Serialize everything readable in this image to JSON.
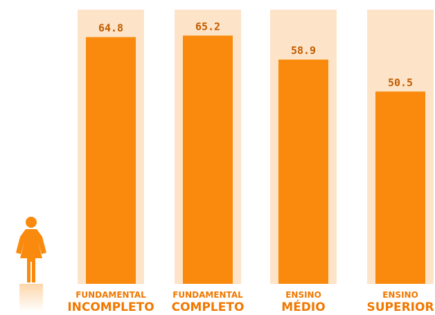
{
  "chart_data": {
    "type": "bar",
    "categories": [
      {
        "line1": "FUNDAMENTAL",
        "line2": "INCOMPLETO"
      },
      {
        "line1": "FUNDAMENTAL",
        "line2": "COMPLETO"
      },
      {
        "line1": "ENSINO",
        "line2": "MÉDIO"
      },
      {
        "line1": "ENSINO",
        "line2": "SUPERIOR"
      }
    ],
    "values": [
      64.8,
      65.2,
      58.9,
      50.5
    ],
    "value_labels": [
      "64.8",
      "65.2",
      "58.9",
      "50.5"
    ],
    "ylim": [
      0,
      72
    ],
    "grid": false,
    "legend": "none"
  },
  "colors": {
    "bar": "#f98a0d",
    "track": "#fde4c8",
    "value_text": "#c35c00",
    "category_text": "#f07800",
    "icon": "#f98a0d"
  },
  "icon": "woman-figure-icon"
}
